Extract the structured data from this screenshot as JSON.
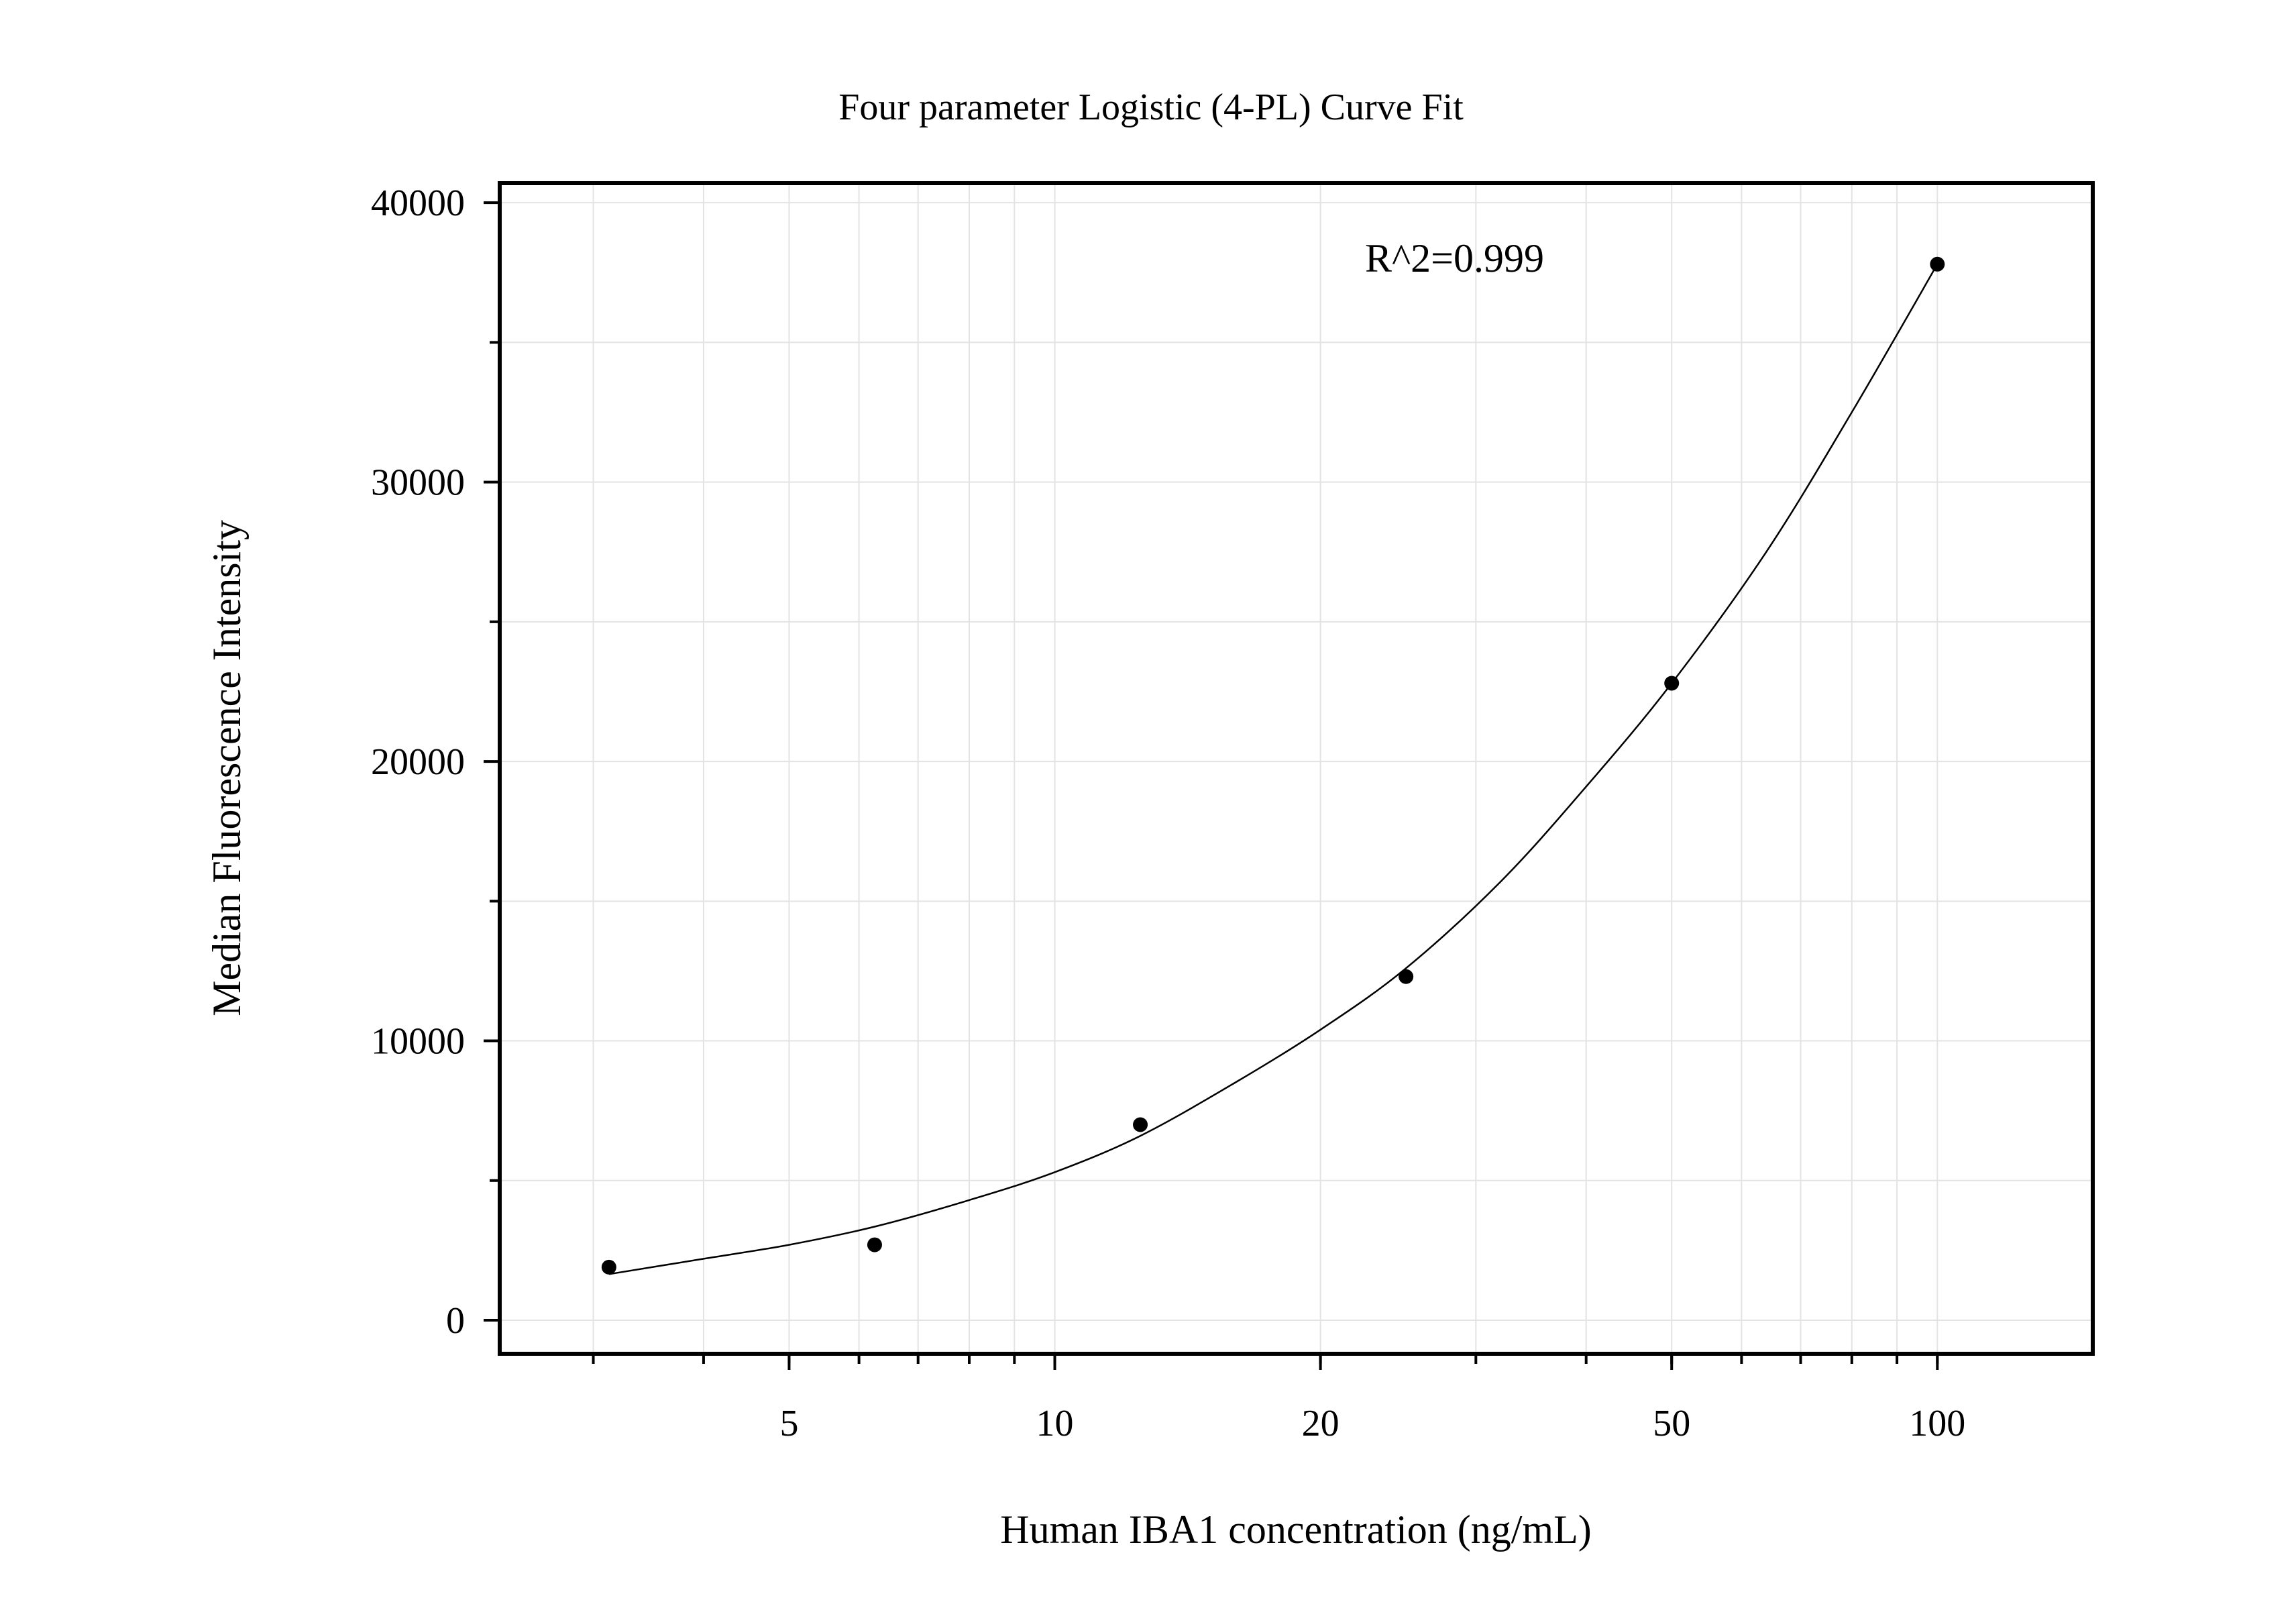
{
  "chart_data": {
    "type": "scatter",
    "title": "Four parameter Logistic (4-PL) Curve Fit",
    "xlabel": "Human IBA1 concentration (ng/mL)",
    "ylabel": "Median Fluorescence Intensity",
    "x_scale": "log",
    "xlim": [
      2.35,
      150
    ],
    "ylim": [
      -1200,
      40700
    ],
    "x_ticks": [
      5,
      10,
      20,
      50,
      100
    ],
    "x_tick_labels": [
      "5",
      "10",
      "20",
      "50",
      "100"
    ],
    "y_ticks": [
      0,
      10000,
      20000,
      30000,
      40000
    ],
    "y_tick_labels": [
      "0",
      "10000",
      "20000",
      "30000",
      "40000"
    ],
    "grid": true,
    "annotation": "R^2=0.999",
    "colors": {
      "points": "#000000",
      "curve": "#000000",
      "grid": "#e3e3e3",
      "frame": "#000000"
    },
    "series": [
      {
        "points": [
          {
            "x": 3.125,
            "y": 1900
          },
          {
            "x": 6.25,
            "y": 2700
          },
          {
            "x": 12.5,
            "y": 7000
          },
          {
            "x": 25,
            "y": 12300
          },
          {
            "x": 50,
            "y": 22800
          },
          {
            "x": 100,
            "y": 37800
          }
        ]
      }
    ],
    "fit_curve": {
      "model": "4-PL",
      "x": [
        3.125,
        4,
        5,
        6.25,
        8,
        10,
        12.5,
        16,
        20,
        25,
        32,
        40,
        50,
        64,
        80,
        100
      ],
      "y": [
        1650,
        2200,
        2700,
        3350,
        4300,
        5300,
        6600,
        8500,
        10400,
        12600,
        15700,
        19100,
        22800,
        27500,
        32500,
        37800
      ]
    }
  }
}
